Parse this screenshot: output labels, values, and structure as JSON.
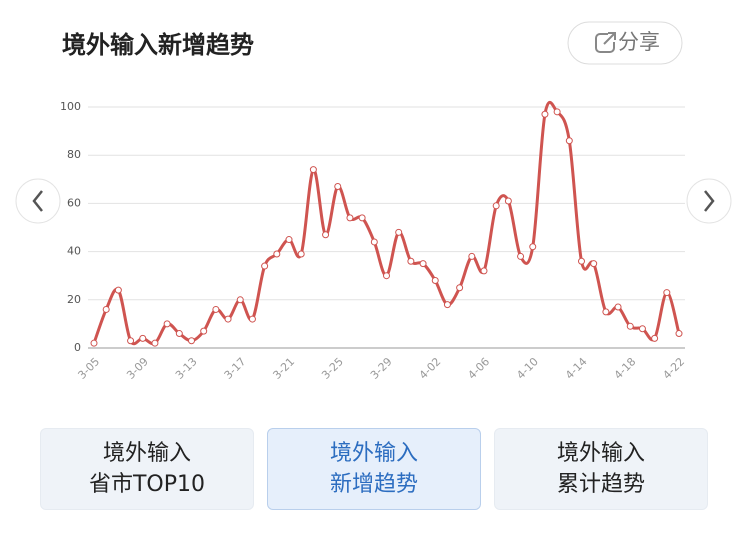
{
  "chart_data": {
    "type": "line",
    "title": "境外输入新增趋势",
    "categories": [
      "3-05",
      null,
      null,
      null,
      "3-09",
      null,
      null,
      null,
      "3-13",
      null,
      null,
      null,
      "3-17",
      null,
      null,
      null,
      "3-21",
      null,
      null,
      null,
      "3-25",
      null,
      null,
      null,
      "3-29",
      null,
      null,
      null,
      "4-02",
      null,
      null,
      null,
      "4-06",
      null,
      null,
      null,
      "4-10",
      null,
      null,
      null,
      "4-14",
      null,
      null,
      null,
      "4-18",
      null,
      null,
      null,
      "4-22"
    ],
    "values": [
      2,
      16,
      24,
      3,
      4,
      2,
      10,
      6,
      3,
      7,
      16,
      12,
      20,
      12,
      34,
      39,
      45,
      39,
      74,
      47,
      67,
      54,
      54,
      44,
      30,
      48,
      36,
      35,
      28,
      18,
      25,
      38,
      32,
      59,
      61,
      38,
      42,
      97,
      98,
      86,
      36,
      35,
      15,
      17,
      9,
      8,
      4,
      23,
      6
    ],
    "color": "#cf5450",
    "ylim": [
      0,
      100
    ],
    "yticks": [
      0,
      20,
      40,
      60,
      80,
      100
    ],
    "grid": true
  },
  "share": "分享",
  "tabs": [
    [
      "境外输入",
      "省市TOP10"
    ],
    [
      "境外输入",
      "新增趋势"
    ],
    [
      "境外输入",
      "累计趋势"
    ]
  ],
  "selected_tab": 1
}
